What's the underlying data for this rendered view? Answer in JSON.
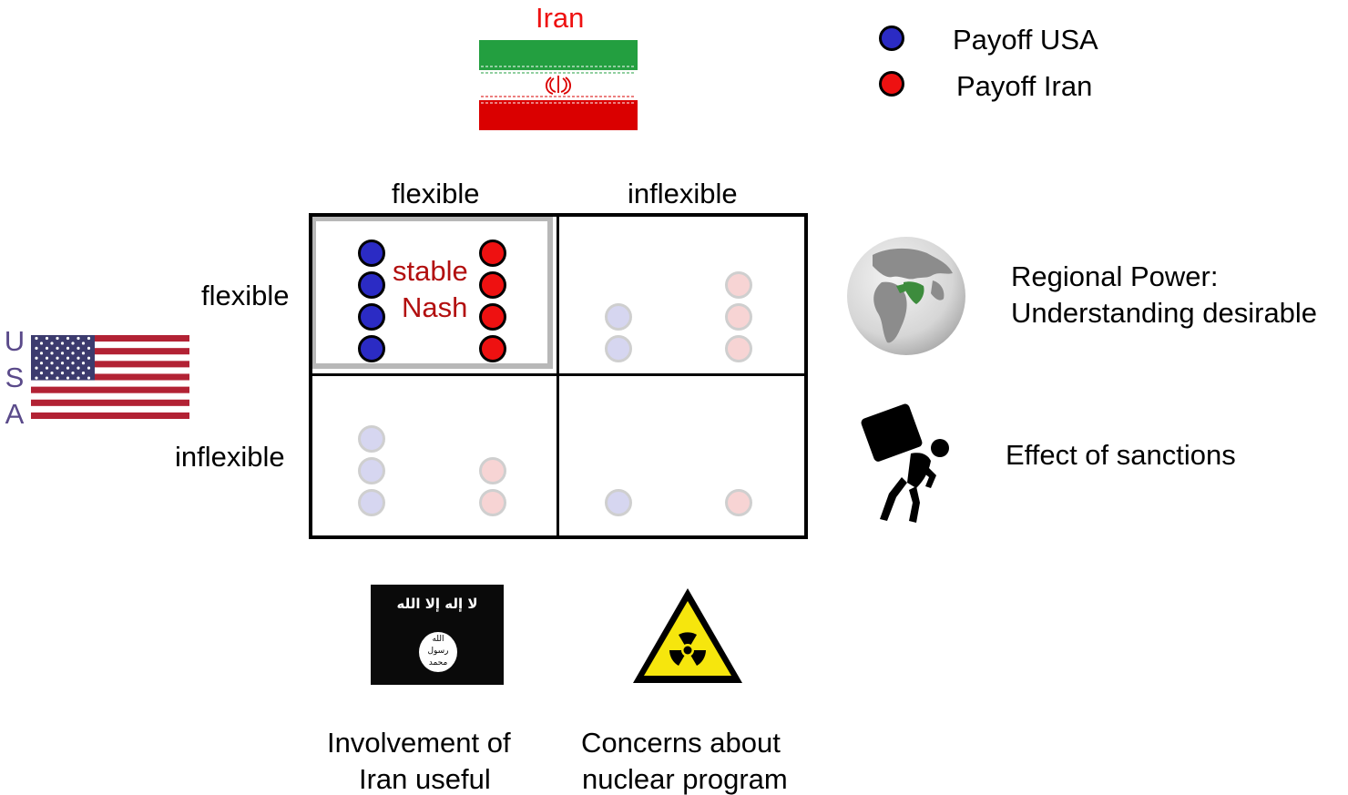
{
  "colors": {
    "usa": "#2b2bc4",
    "iran": "#ee1111",
    "usa_faint": "#d6d6f0",
    "iran_faint": "#f7d4d4",
    "nash_text": "#b20f0f",
    "iran_label": "#ee1111",
    "usa_label": "#5a4a8a",
    "highlight": "#b8b8b8"
  },
  "iran_label": "Iran",
  "usa_label": [
    "U",
    "S",
    "A"
  ],
  "legend": {
    "usa": "Payoff USA",
    "iran": "Payoff Iran"
  },
  "columns": [
    "flexible",
    "inflexible"
  ],
  "rows": [
    "flexible",
    "inflexible"
  ],
  "matrix": [
    [
      {
        "usa": 4,
        "iran": 4,
        "highlight": true
      },
      {
        "usa": 2,
        "iran": 3,
        "highlight": false
      }
    ],
    [
      {
        "usa": 3,
        "iran": 2,
        "highlight": false
      },
      {
        "usa": 1,
        "iran": 1,
        "highlight": false
      }
    ]
  ],
  "equilibrium": {
    "line1": "stable",
    "line2": "Nash"
  },
  "factors": {
    "regional": [
      "Regional Power:",
      "Understanding desirable"
    ],
    "sanctions": "Effect of sanctions",
    "isis": [
      "Involvement of",
      "Iran useful"
    ],
    "nuclear": [
      "Concerns about",
      "nuclear program"
    ]
  },
  "isis_flag_text": {
    "top": "لا إله إلا الله",
    "seal": [
      "الله",
      "رسول",
      "محمد"
    ]
  }
}
